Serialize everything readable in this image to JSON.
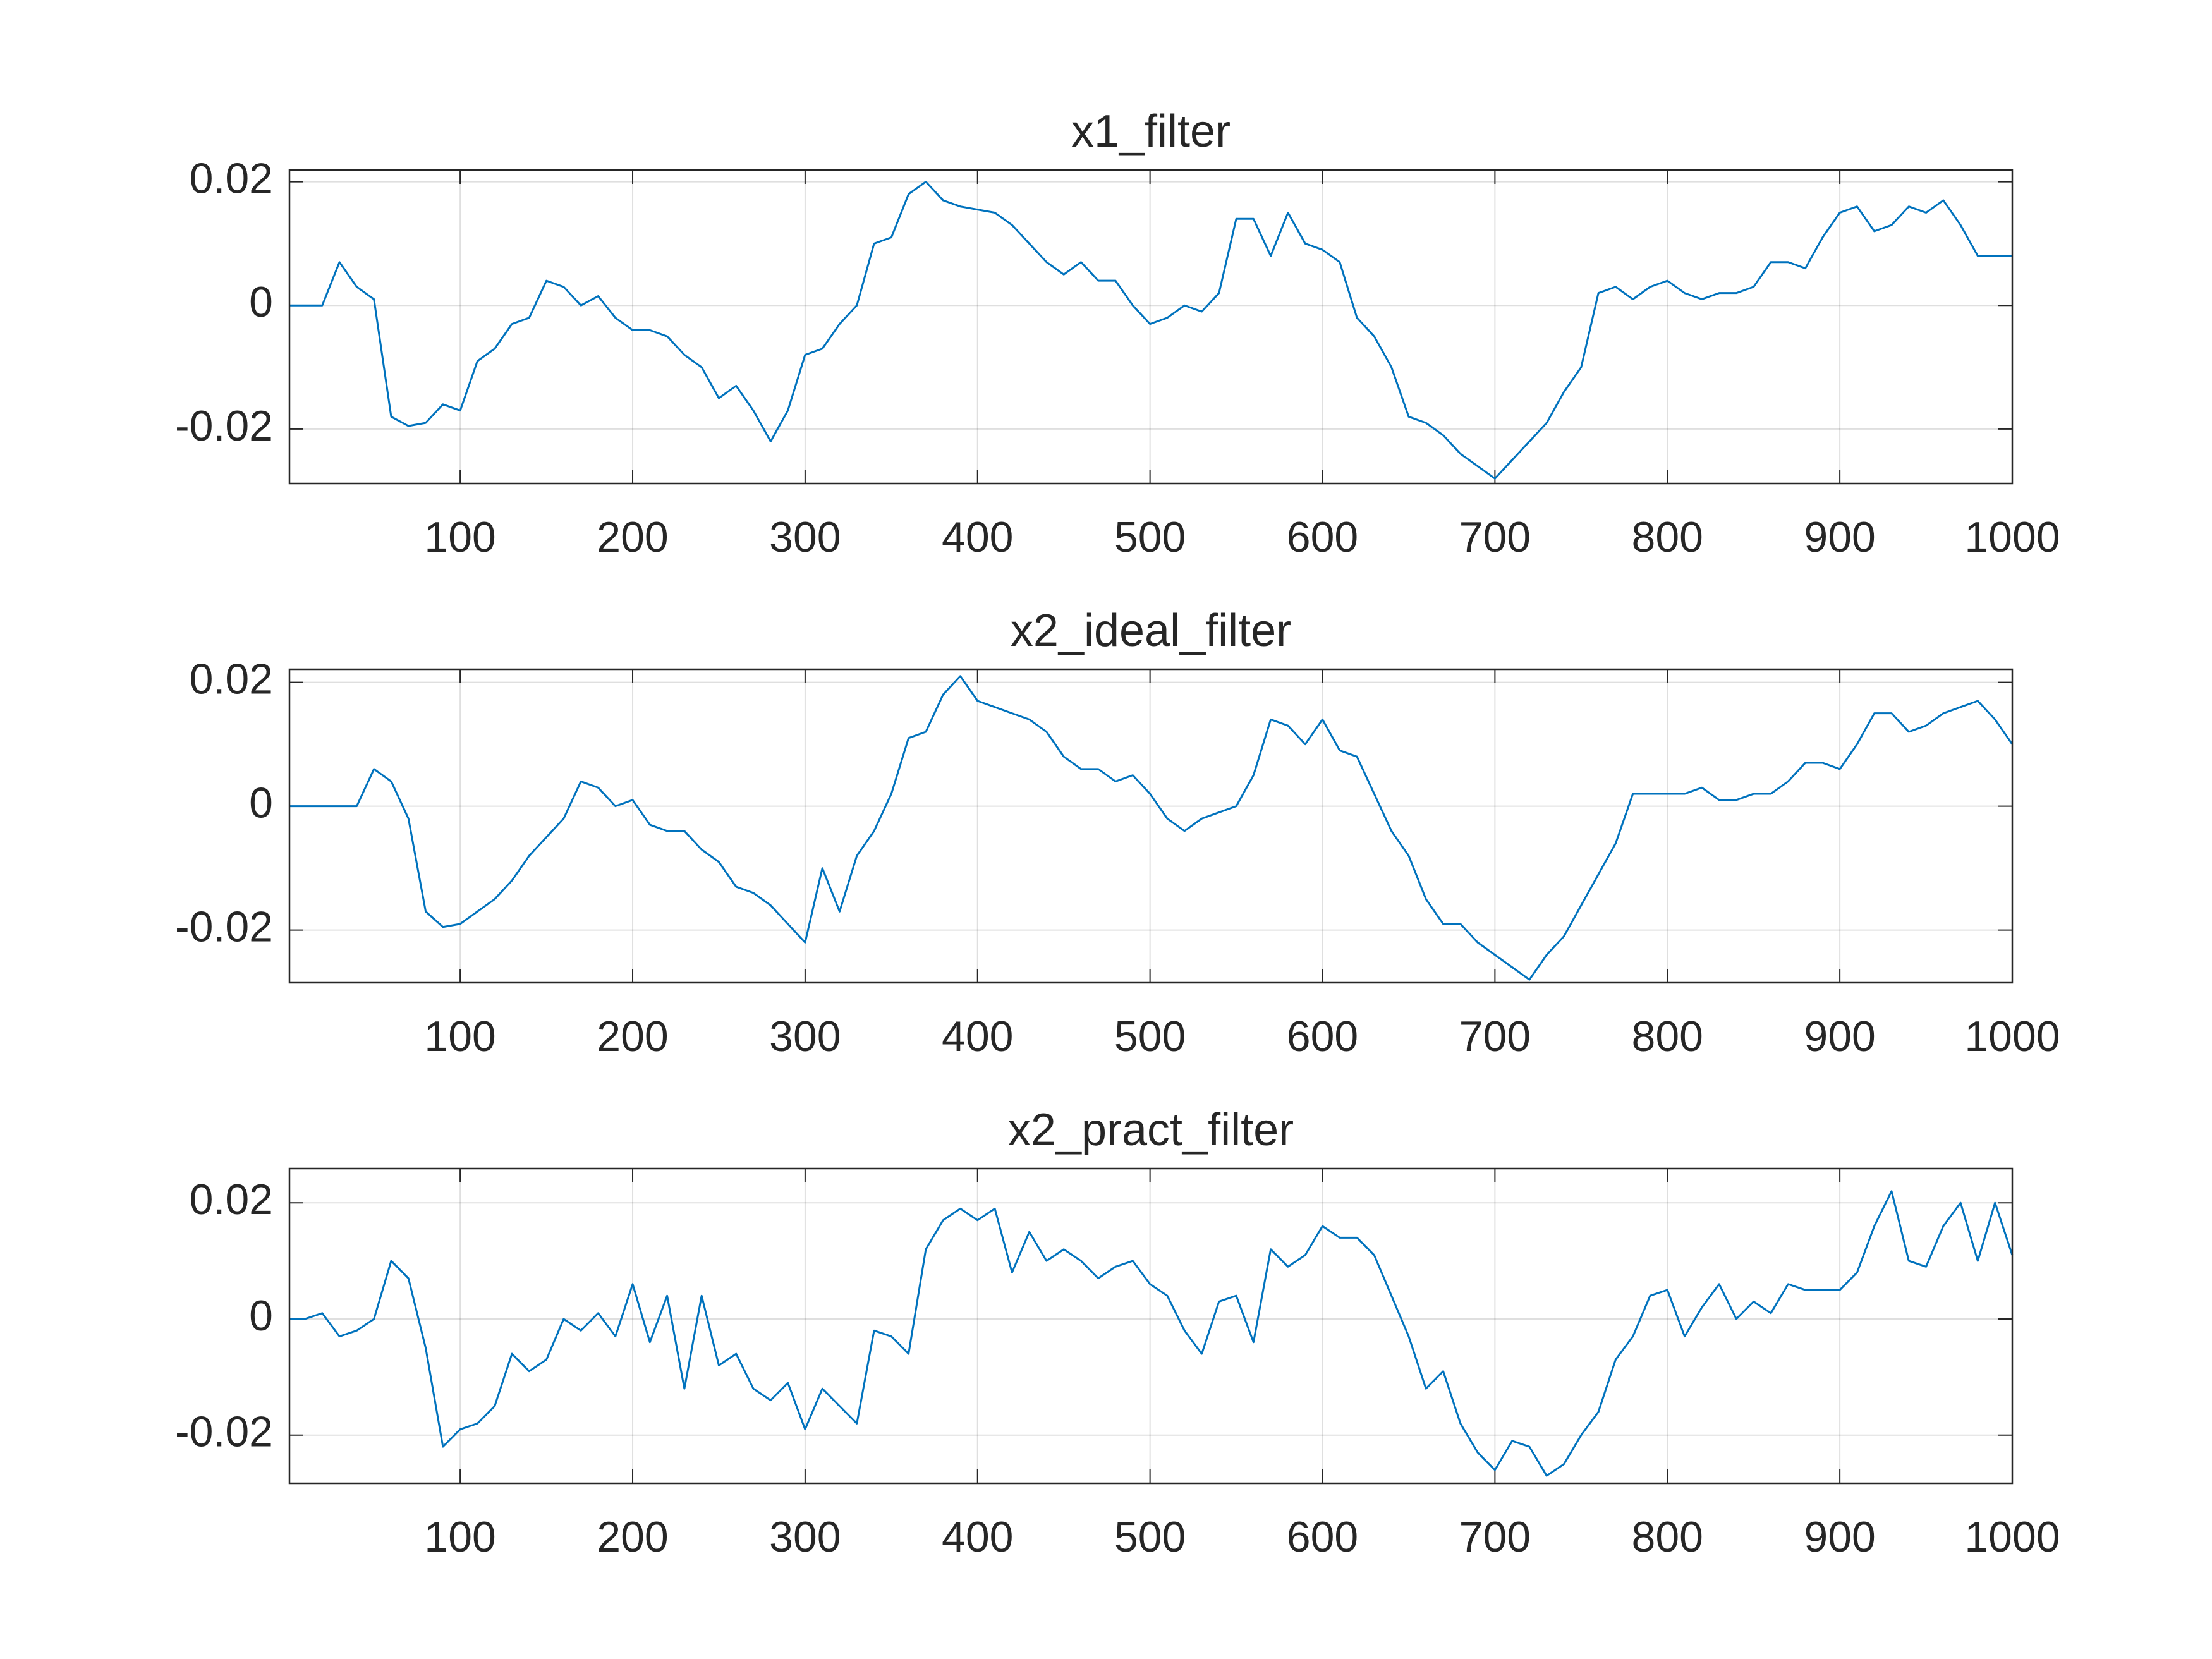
{
  "chart_data": [
    {
      "type": "line",
      "title": "x1_filter",
      "x": [
        1,
        10,
        20,
        30,
        40,
        50,
        60,
        70,
        80,
        90,
        100,
        110,
        120,
        130,
        140,
        150,
        160,
        170,
        180,
        190,
        200,
        210,
        220,
        230,
        240,
        250,
        260,
        270,
        280,
        290,
        300,
        310,
        320,
        330,
        340,
        350,
        360,
        370,
        380,
        390,
        400,
        410,
        420,
        430,
        440,
        450,
        460,
        470,
        480,
        490,
        500,
        510,
        520,
        530,
        540,
        550,
        560,
        570,
        580,
        590,
        600,
        610,
        620,
        630,
        640,
        650,
        660,
        670,
        680,
        690,
        700,
        710,
        720,
        730,
        740,
        750,
        760,
        770,
        780,
        790,
        800,
        810,
        820,
        830,
        840,
        850,
        860,
        870,
        880,
        890,
        900,
        910,
        920,
        930,
        940,
        950,
        960,
        970,
        980,
        990,
        1000
      ],
      "series": [
        {
          "color": "#0072bd",
          "values": [
            0,
            0,
            0,
            0.007,
            0.003,
            0.001,
            -0.018,
            -0.0195,
            -0.019,
            -0.016,
            -0.017,
            -0.009,
            -0.007,
            -0.003,
            -0.002,
            0.004,
            0.003,
            0,
            0.0015,
            -0.002,
            -0.004,
            -0.004,
            -0.005,
            -0.008,
            -0.01,
            -0.015,
            -0.013,
            -0.017,
            -0.022,
            -0.017,
            -0.008,
            -0.007,
            -0.003,
            0,
            0.01,
            0.011,
            0.018,
            0.02,
            0.017,
            0.016,
            0.0155,
            0.015,
            0.013,
            0.01,
            0.007,
            0.005,
            0.007,
            0.004,
            0.004,
            0,
            -0.003,
            -0.002,
            0,
            -0.001,
            0.002,
            0.014,
            0.014,
            0.008,
            0.015,
            0.01,
            0.009,
            0.007,
            -0.002,
            -0.005,
            -0.01,
            -0.018,
            -0.019,
            -0.021,
            -0.024,
            -0.026,
            -0.028,
            -0.025,
            -0.022,
            -0.019,
            -0.014,
            -0.01,
            0.002,
            0.003,
            0.001,
            0.003,
            0.004,
            0.002,
            0.001,
            0.002,
            0.002,
            0.003,
            0.007,
            0.007,
            0.006,
            0.011,
            0.015,
            0.016,
            0.012,
            0.013,
            0.016,
            0.015,
            0.017,
            0.013,
            0.008,
            0.008,
            0.008
          ]
        }
      ],
      "xlim": [
        1,
        1000
      ],
      "xticks": [
        100,
        200,
        300,
        400,
        500,
        600,
        700,
        800,
        900,
        1000
      ],
      "ylim": [
        -0.0288,
        0.0219
      ],
      "yticks": [
        -0.02,
        0,
        0.02
      ],
      "grid": true
    },
    {
      "type": "line",
      "title": "x2_ideal_filter",
      "x": [
        1,
        10,
        20,
        30,
        40,
        50,
        60,
        70,
        80,
        90,
        100,
        110,
        120,
        130,
        140,
        150,
        160,
        170,
        180,
        190,
        200,
        210,
        220,
        230,
        240,
        250,
        260,
        270,
        280,
        290,
        300,
        310,
        320,
        330,
        340,
        350,
        360,
        370,
        380,
        390,
        400,
        410,
        420,
        430,
        440,
        450,
        460,
        470,
        480,
        490,
        500,
        510,
        520,
        530,
        540,
        550,
        560,
        570,
        580,
        590,
        600,
        610,
        620,
        630,
        640,
        650,
        660,
        670,
        680,
        690,
        700,
        710,
        720,
        730,
        740,
        750,
        760,
        770,
        780,
        790,
        800,
        810,
        820,
        830,
        840,
        850,
        860,
        870,
        880,
        890,
        900,
        910,
        920,
        930,
        940,
        950,
        960,
        970,
        980,
        990,
        1000
      ],
      "series": [
        {
          "color": "#0072bd",
          "values": [
            0,
            0,
            0,
            0,
            0,
            0.006,
            0.004,
            -0.002,
            -0.017,
            -0.0195,
            -0.019,
            -0.017,
            -0.015,
            -0.012,
            -0.008,
            -0.005,
            -0.002,
            0.004,
            0.003,
            0,
            0.001,
            -0.003,
            -0.004,
            -0.004,
            -0.007,
            -0.009,
            -0.013,
            -0.014,
            -0.016,
            -0.019,
            -0.022,
            -0.01,
            -0.017,
            -0.008,
            -0.004,
            0.002,
            0.011,
            0.012,
            0.018,
            0.021,
            0.017,
            0.016,
            0.015,
            0.014,
            0.012,
            0.008,
            0.006,
            0.006,
            0.004,
            0.005,
            0.002,
            -0.002,
            -0.004,
            -0.002,
            -0.001,
            0,
            0.005,
            0.014,
            0.013,
            0.01,
            0.014,
            0.009,
            0.008,
            0.002,
            -0.004,
            -0.008,
            -0.015,
            -0.019,
            -0.019,
            -0.022,
            -0.024,
            -0.026,
            -0.028,
            -0.024,
            -0.021,
            -0.016,
            -0.011,
            -0.006,
            0.002,
            0.002,
            0.002,
            0.002,
            0.003,
            0.001,
            0.001,
            0.002,
            0.002,
            0.004,
            0.007,
            0.007,
            0.006,
            0.01,
            0.015,
            0.015,
            0.012,
            0.013,
            0.015,
            0.016,
            0.017,
            0.014,
            0.01
          ]
        }
      ],
      "xlim": [
        1,
        1000
      ],
      "xticks": [
        100,
        200,
        300,
        400,
        500,
        600,
        700,
        800,
        900,
        1000
      ],
      "ylim": [
        -0.0285,
        0.0221
      ],
      "yticks": [
        -0.02,
        0,
        0.02
      ],
      "grid": true
    },
    {
      "type": "line",
      "title": "x2_pract_filter",
      "x": [
        1,
        10,
        20,
        30,
        40,
        50,
        60,
        70,
        80,
        90,
        100,
        110,
        120,
        130,
        140,
        150,
        160,
        170,
        180,
        190,
        200,
        210,
        220,
        230,
        240,
        250,
        260,
        270,
        280,
        290,
        300,
        310,
        320,
        330,
        340,
        350,
        360,
        370,
        380,
        390,
        400,
        410,
        420,
        430,
        440,
        450,
        460,
        470,
        480,
        490,
        500,
        510,
        520,
        530,
        540,
        550,
        560,
        570,
        580,
        590,
        600,
        610,
        620,
        630,
        640,
        650,
        660,
        670,
        680,
        690,
        700,
        710,
        720,
        730,
        740,
        750,
        760,
        770,
        780,
        790,
        800,
        810,
        820,
        830,
        840,
        850,
        860,
        870,
        880,
        890,
        900,
        910,
        920,
        930,
        940,
        950,
        960,
        970,
        980,
        990,
        1000
      ],
      "series": [
        {
          "color": "#0072bd",
          "values": [
            0,
            0,
            0.001,
            -0.003,
            -0.002,
            0,
            0.01,
            0.007,
            -0.005,
            -0.022,
            -0.019,
            -0.018,
            -0.015,
            -0.006,
            -0.009,
            -0.007,
            0,
            -0.002,
            0.001,
            -0.003,
            0.006,
            -0.004,
            0.004,
            -0.012,
            0.004,
            -0.008,
            -0.006,
            -0.012,
            -0.014,
            -0.011,
            -0.019,
            -0.012,
            -0.015,
            -0.018,
            -0.002,
            -0.003,
            -0.006,
            0.012,
            0.017,
            0.019,
            0.017,
            0.019,
            0.008,
            0.015,
            0.01,
            0.012,
            0.01,
            0.007,
            0.009,
            0.01,
            0.006,
            0.004,
            -0.002,
            -0.006,
            0.003,
            0.004,
            -0.004,
            0.012,
            0.009,
            0.011,
            0.016,
            0.014,
            0.014,
            0.011,
            0.004,
            -0.003,
            -0.012,
            -0.009,
            -0.018,
            -0.023,
            -0.026,
            -0.021,
            -0.022,
            -0.027,
            -0.025,
            -0.02,
            -0.016,
            -0.007,
            -0.003,
            0.004,
            0.005,
            -0.003,
            0.002,
            0.006,
            0,
            0.003,
            0.001,
            0.006,
            0.005,
            0.005,
            0.005,
            0.008,
            0.016,
            0.022,
            0.01,
            0.009,
            0.016,
            0.02,
            0.01,
            0.02,
            0.011
          ]
        }
      ],
      "xlim": [
        1,
        1000
      ],
      "xticks": [
        100,
        200,
        300,
        400,
        500,
        600,
        700,
        800,
        900,
        1000
      ],
      "ylim": [
        -0.0283,
        0.0259
      ],
      "yticks": [
        -0.02,
        0,
        0.02
      ],
      "grid": true
    }
  ]
}
